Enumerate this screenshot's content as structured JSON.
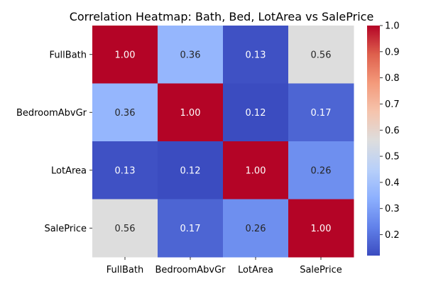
{
  "chart_data": {
    "type": "heatmap",
    "title": "Correlation Heatmap: Bath, Bed, LotArea vs SalePrice",
    "x_labels": [
      "FullBath",
      "BedroomAbvGr",
      "LotArea",
      "SalePrice"
    ],
    "y_labels": [
      "FullBath",
      "BedroomAbvGr",
      "LotArea",
      "SalePrice"
    ],
    "values": [
      [
        1.0,
        0.36,
        0.13,
        0.56
      ],
      [
        0.36,
        1.0,
        0.12,
        0.17
      ],
      [
        0.13,
        0.12,
        1.0,
        0.26
      ],
      [
        0.56,
        0.17,
        0.26,
        1.0
      ]
    ],
    "value_format": "0.00",
    "colormap": "coolwarm",
    "colorbar": {
      "min": 0.12,
      "max": 1.0,
      "ticks": [
        0.2,
        0.3,
        0.4,
        0.5,
        0.6,
        0.7,
        0.8,
        0.9,
        1.0
      ],
      "tick_labels": [
        "0.2",
        "0.3",
        "0.4",
        "0.5",
        "0.6",
        "0.7",
        "0.8",
        "0.9",
        "1.0"
      ]
    }
  }
}
